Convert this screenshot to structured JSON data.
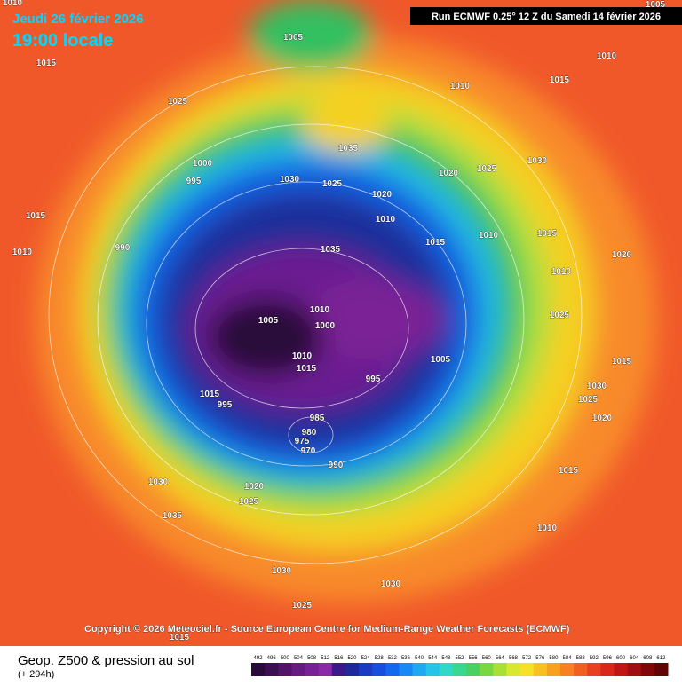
{
  "header": {
    "date": "Jeudi 26 février 2026",
    "time": "19:00 locale",
    "run": "Run ECMWF 0.25° 12 Z du Samedi 14 février 2026"
  },
  "copyright": "Copyright © 2026 Meteociel.fr - Source European Centre for Medium-Range Weather Forecasts (ECMWF)",
  "footer": {
    "title": "Geop. Z500 & pression au sol",
    "lead": "(+ 294h)"
  },
  "legend": {
    "labels": [
      492,
      496,
      500,
      504,
      508,
      512,
      516,
      520,
      524,
      528,
      532,
      536,
      540,
      544,
      548,
      552,
      556,
      560,
      564,
      568,
      572,
      576,
      580,
      584,
      588,
      592,
      596,
      600,
      604,
      608,
      612
    ],
    "colors": [
      "#2a0a3a",
      "#3c0f52",
      "#52136a",
      "#661a82",
      "#7a2096",
      "#8a28a8",
      "#3a1a8a",
      "#1e2a9c",
      "#1a3cc0",
      "#1450dc",
      "#1468f0",
      "#1888f4",
      "#20a8f0",
      "#28c4e8",
      "#30d8c8",
      "#38d890",
      "#48d060",
      "#78d840",
      "#a8e038",
      "#d8e830",
      "#f8e028",
      "#f8c020",
      "#f8a020",
      "#f88020",
      "#f06020",
      "#e84020",
      "#d82818",
      "#c01810",
      "#a01010",
      "#800808",
      "#600404"
    ]
  },
  "isobars": [
    "1005",
    "1015",
    "1025",
    "1035",
    "1000",
    "995",
    "1030",
    "1025",
    "1020",
    "1020",
    "1025",
    "1030",
    "1010",
    "1015",
    "1010",
    "1005",
    "1010",
    "1015",
    "1010",
    "990",
    "1035",
    "1010",
    "1015",
    "1010",
    "1005",
    "1010",
    "1000",
    "1010",
    "1015",
    "995",
    "1005",
    "1015",
    "995",
    "985",
    "980",
    "975",
    "970",
    "990",
    "1020",
    "1025",
    "1030",
    "1035",
    "1030",
    "1030",
    "1025",
    "1015",
    "1010",
    "1015",
    "1020",
    "1025",
    "1030",
    "1015",
    "1020",
    "1025",
    "1015",
    "1010"
  ]
}
